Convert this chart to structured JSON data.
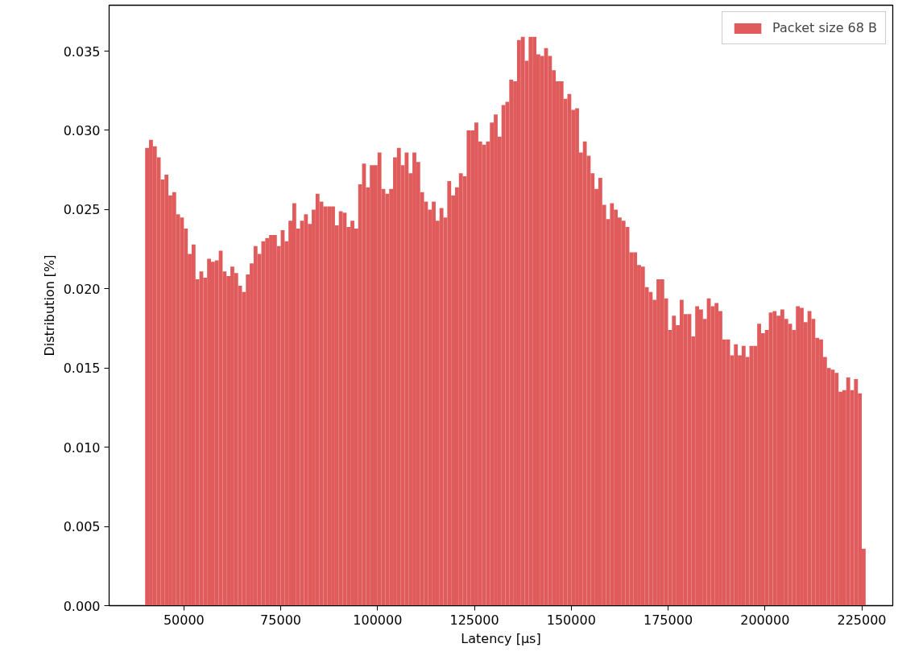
{
  "chart_data": {
    "type": "histogram",
    "xlabel": "Latency [µs]",
    "ylabel": "Distribution [%]",
    "bins": [
      40000,
      41000,
      42000,
      43000,
      44000,
      45000,
      46000,
      47000,
      48000,
      49000,
      50000,
      51000,
      52000,
      53000,
      54000,
      55000,
      56000,
      57000,
      58000,
      59000,
      60000,
      61000,
      62000,
      63000,
      64000,
      65000,
      66000,
      67000,
      68000,
      69000,
      70000,
      71000,
      72000,
      73000,
      74000,
      75000,
      76000,
      77000,
      78000,
      79000,
      80000,
      81000,
      82000,
      83000,
      84000,
      85000,
      86000,
      87000,
      88000,
      89000,
      90000,
      91000,
      92000,
      93000,
      94000,
      95000,
      96000,
      97000,
      98000,
      99000,
      100000,
      101000,
      102000,
      103000,
      104000,
      105000,
      106000,
      107000,
      108000,
      109000,
      110000,
      111000,
      112000,
      113000,
      114000,
      115000,
      116000,
      117000,
      118000,
      119000,
      120000,
      121000,
      122000,
      123000,
      124000,
      125000,
      126000,
      127000,
      128000,
      129000,
      130000,
      131000,
      132000,
      133000,
      134000,
      135000,
      136000,
      137000,
      138000,
      139000,
      140000,
      141000,
      142000,
      143000,
      144000,
      145000,
      146000,
      147000,
      148000,
      149000,
      150000,
      151000,
      152000,
      153000,
      154000,
      155000,
      156000,
      157000,
      158000,
      159000,
      160000,
      161000,
      162000,
      163000,
      164000,
      165000,
      166000,
      167000,
      168000,
      169000,
      170000,
      171000,
      172000,
      173000,
      174000,
      175000,
      176000,
      177000,
      178000,
      179000,
      180000,
      181000,
      182000,
      183000,
      184000,
      185000,
      186000,
      187000,
      188000,
      189000,
      190000,
      191000,
      192000,
      193000,
      194000,
      195000,
      196000,
      197000,
      198000,
      199000,
      200000,
      201000,
      202000,
      203000,
      204000,
      205000,
      206000,
      207000,
      208000,
      209000,
      210000,
      211000,
      212000,
      213000,
      214000,
      215000,
      216000,
      217000,
      218000,
      219000,
      220000,
      221000,
      222000,
      223000,
      224000,
      225000,
      226000
    ],
    "series": [
      {
        "name": "Packet size 68 B",
        "color": "#e05c5c",
        "values": [
          0.0289,
          0.0294,
          0.029,
          0.0283,
          0.0269,
          0.0272,
          0.0259,
          0.0261,
          0.0247,
          0.0245,
          0.0238,
          0.0222,
          0.0228,
          0.0206,
          0.0211,
          0.0207,
          0.0219,
          0.0217,
          0.0218,
          0.0224,
          0.0211,
          0.0208,
          0.0214,
          0.021,
          0.0202,
          0.0198,
          0.0209,
          0.0216,
          0.0227,
          0.0222,
          0.023,
          0.0232,
          0.0234,
          0.0234,
          0.0227,
          0.0237,
          0.023,
          0.0243,
          0.0254,
          0.0238,
          0.0243,
          0.0247,
          0.0241,
          0.025,
          0.026,
          0.0255,
          0.0252,
          0.0252,
          0.0252,
          0.024,
          0.0249,
          0.0248,
          0.0239,
          0.0243,
          0.0238,
          0.0266,
          0.0279,
          0.0264,
          0.0278,
          0.0278,
          0.0286,
          0.0263,
          0.026,
          0.0263,
          0.0283,
          0.0289,
          0.0278,
          0.0286,
          0.0273,
          0.0286,
          0.028,
          0.0261,
          0.0255,
          0.025,
          0.0255,
          0.0243,
          0.0251,
          0.0245,
          0.0268,
          0.0259,
          0.0264,
          0.0273,
          0.0271,
          0.03,
          0.03,
          0.0305,
          0.0293,
          0.0291,
          0.0293,
          0.0305,
          0.031,
          0.0296,
          0.0316,
          0.0318,
          0.0332,
          0.0331,
          0.0357,
          0.0359,
          0.0344,
          0.0359,
          0.0359,
          0.0348,
          0.0347,
          0.0352,
          0.0347,
          0.0338,
          0.0331,
          0.0331,
          0.032,
          0.0323,
          0.0313,
          0.0314,
          0.0286,
          0.0293,
          0.0284,
          0.0273,
          0.0263,
          0.027,
          0.0253,
          0.0244,
          0.0254,
          0.025,
          0.0245,
          0.0243,
          0.0239,
          0.0223,
          0.0223,
          0.0215,
          0.0214,
          0.0201,
          0.0198,
          0.0193,
          0.0206,
          0.0206,
          0.0194,
          0.0174,
          0.0183,
          0.0177,
          0.0193,
          0.0184,
          0.0184,
          0.017,
          0.0189,
          0.0187,
          0.0181,
          0.0194,
          0.0189,
          0.0191,
          0.0186,
          0.0168,
          0.0168,
          0.0158,
          0.0165,
          0.0158,
          0.0164,
          0.0157,
          0.0164,
          0.0164,
          0.0178,
          0.0172,
          0.0174,
          0.0185,
          0.0186,
          0.0183,
          0.0187,
          0.0181,
          0.0178,
          0.0174,
          0.0189,
          0.0188,
          0.0179,
          0.0186,
          0.0181,
          0.0169,
          0.0168,
          0.0157,
          0.015,
          0.0149,
          0.0147,
          0.0135,
          0.0136,
          0.0144,
          0.0136,
          0.0143,
          0.0134,
          0.0036
        ]
      }
    ],
    "xlim": [
      30700,
      233000
    ],
    "ylim": [
      0,
      0.0379
    ],
    "xticks": [
      50000,
      75000,
      100000,
      125000,
      150000,
      175000,
      200000,
      225000
    ],
    "yticks": [
      {
        "value": 0,
        "label": "0.000"
      },
      {
        "value": 0.005,
        "label": "0.005"
      },
      {
        "value": 0.01,
        "label": "0.010"
      },
      {
        "value": 0.015,
        "label": "0.015"
      },
      {
        "value": 0.02,
        "label": "0.020"
      },
      {
        "value": 0.025,
        "label": "0.025"
      },
      {
        "value": 0.03,
        "label": "0.030"
      },
      {
        "value": 0.035,
        "label": "0.035"
      }
    ],
    "grid": false,
    "legend": "top right"
  }
}
